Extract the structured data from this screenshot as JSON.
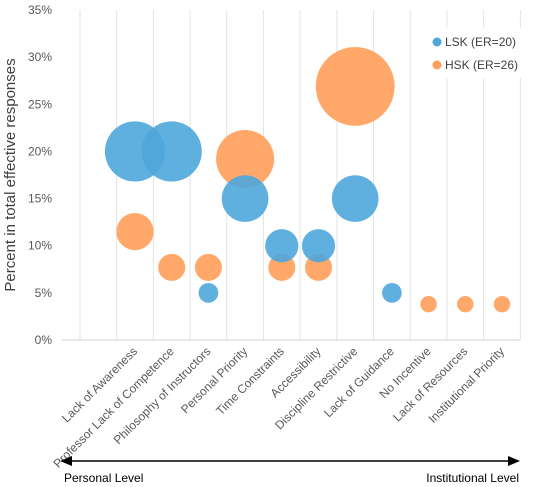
{
  "chart_data": {
    "type": "bubble",
    "ylabel": "Percent in total effective responses",
    "y_ticks": [
      "0%",
      "5%",
      "10%",
      "15%",
      "20%",
      "25%",
      "30%",
      "35%"
    ],
    "ylim": [
      0,
      35
    ],
    "grid": "vertical",
    "legend_position": "top-right",
    "categories": [
      "Lack of Awareness",
      "Professor Lack of Competence",
      "Philosophy of Instructors",
      "Personal Priority",
      "Time Constraints",
      "Accessibility",
      "Discipline Restrictive",
      "Lack of Guidance",
      "No Incentive",
      "Lack of Resources",
      "Institutional Priority"
    ],
    "series": [
      {
        "name": "LSK (ER=20)",
        "color": "#4EA6DC",
        "points": [
          {
            "x": "Lack of Awareness",
            "y": 20
          },
          {
            "x": "Professor Lack of Competence",
            "y": 20
          },
          {
            "x": "Philosophy of Instructors",
            "y": 5
          },
          {
            "x": "Personal Priority",
            "y": 15
          },
          {
            "x": "Time Constraints",
            "y": 10
          },
          {
            "x": "Accessibility",
            "y": 10
          },
          {
            "x": "Discipline Restrictive",
            "y": 15
          },
          {
            "x": "Lack of Guidance",
            "y": 5
          }
        ]
      },
      {
        "name": "HSK (ER=26)",
        "color": "#FF9E5A",
        "points": [
          {
            "x": "Lack of Awareness",
            "y": 11.5
          },
          {
            "x": "Professor Lack of Competence",
            "y": 7.7
          },
          {
            "x": "Philosophy of Instructors",
            "y": 7.7
          },
          {
            "x": "Personal Priority",
            "y": 19.2
          },
          {
            "x": "Time Constraints",
            "y": 7.7
          },
          {
            "x": "Accessibility",
            "y": 7.7
          },
          {
            "x": "Discipline Restrictive",
            "y": 26.9
          },
          {
            "x": "No Incentive",
            "y": 3.8
          },
          {
            "x": "Lack of Resources",
            "y": 3.8
          },
          {
            "x": "Institutional Priority",
            "y": 3.8
          }
        ]
      }
    ],
    "axis_annotation": {
      "left": "Personal Level",
      "right": "Institutional Level"
    }
  }
}
